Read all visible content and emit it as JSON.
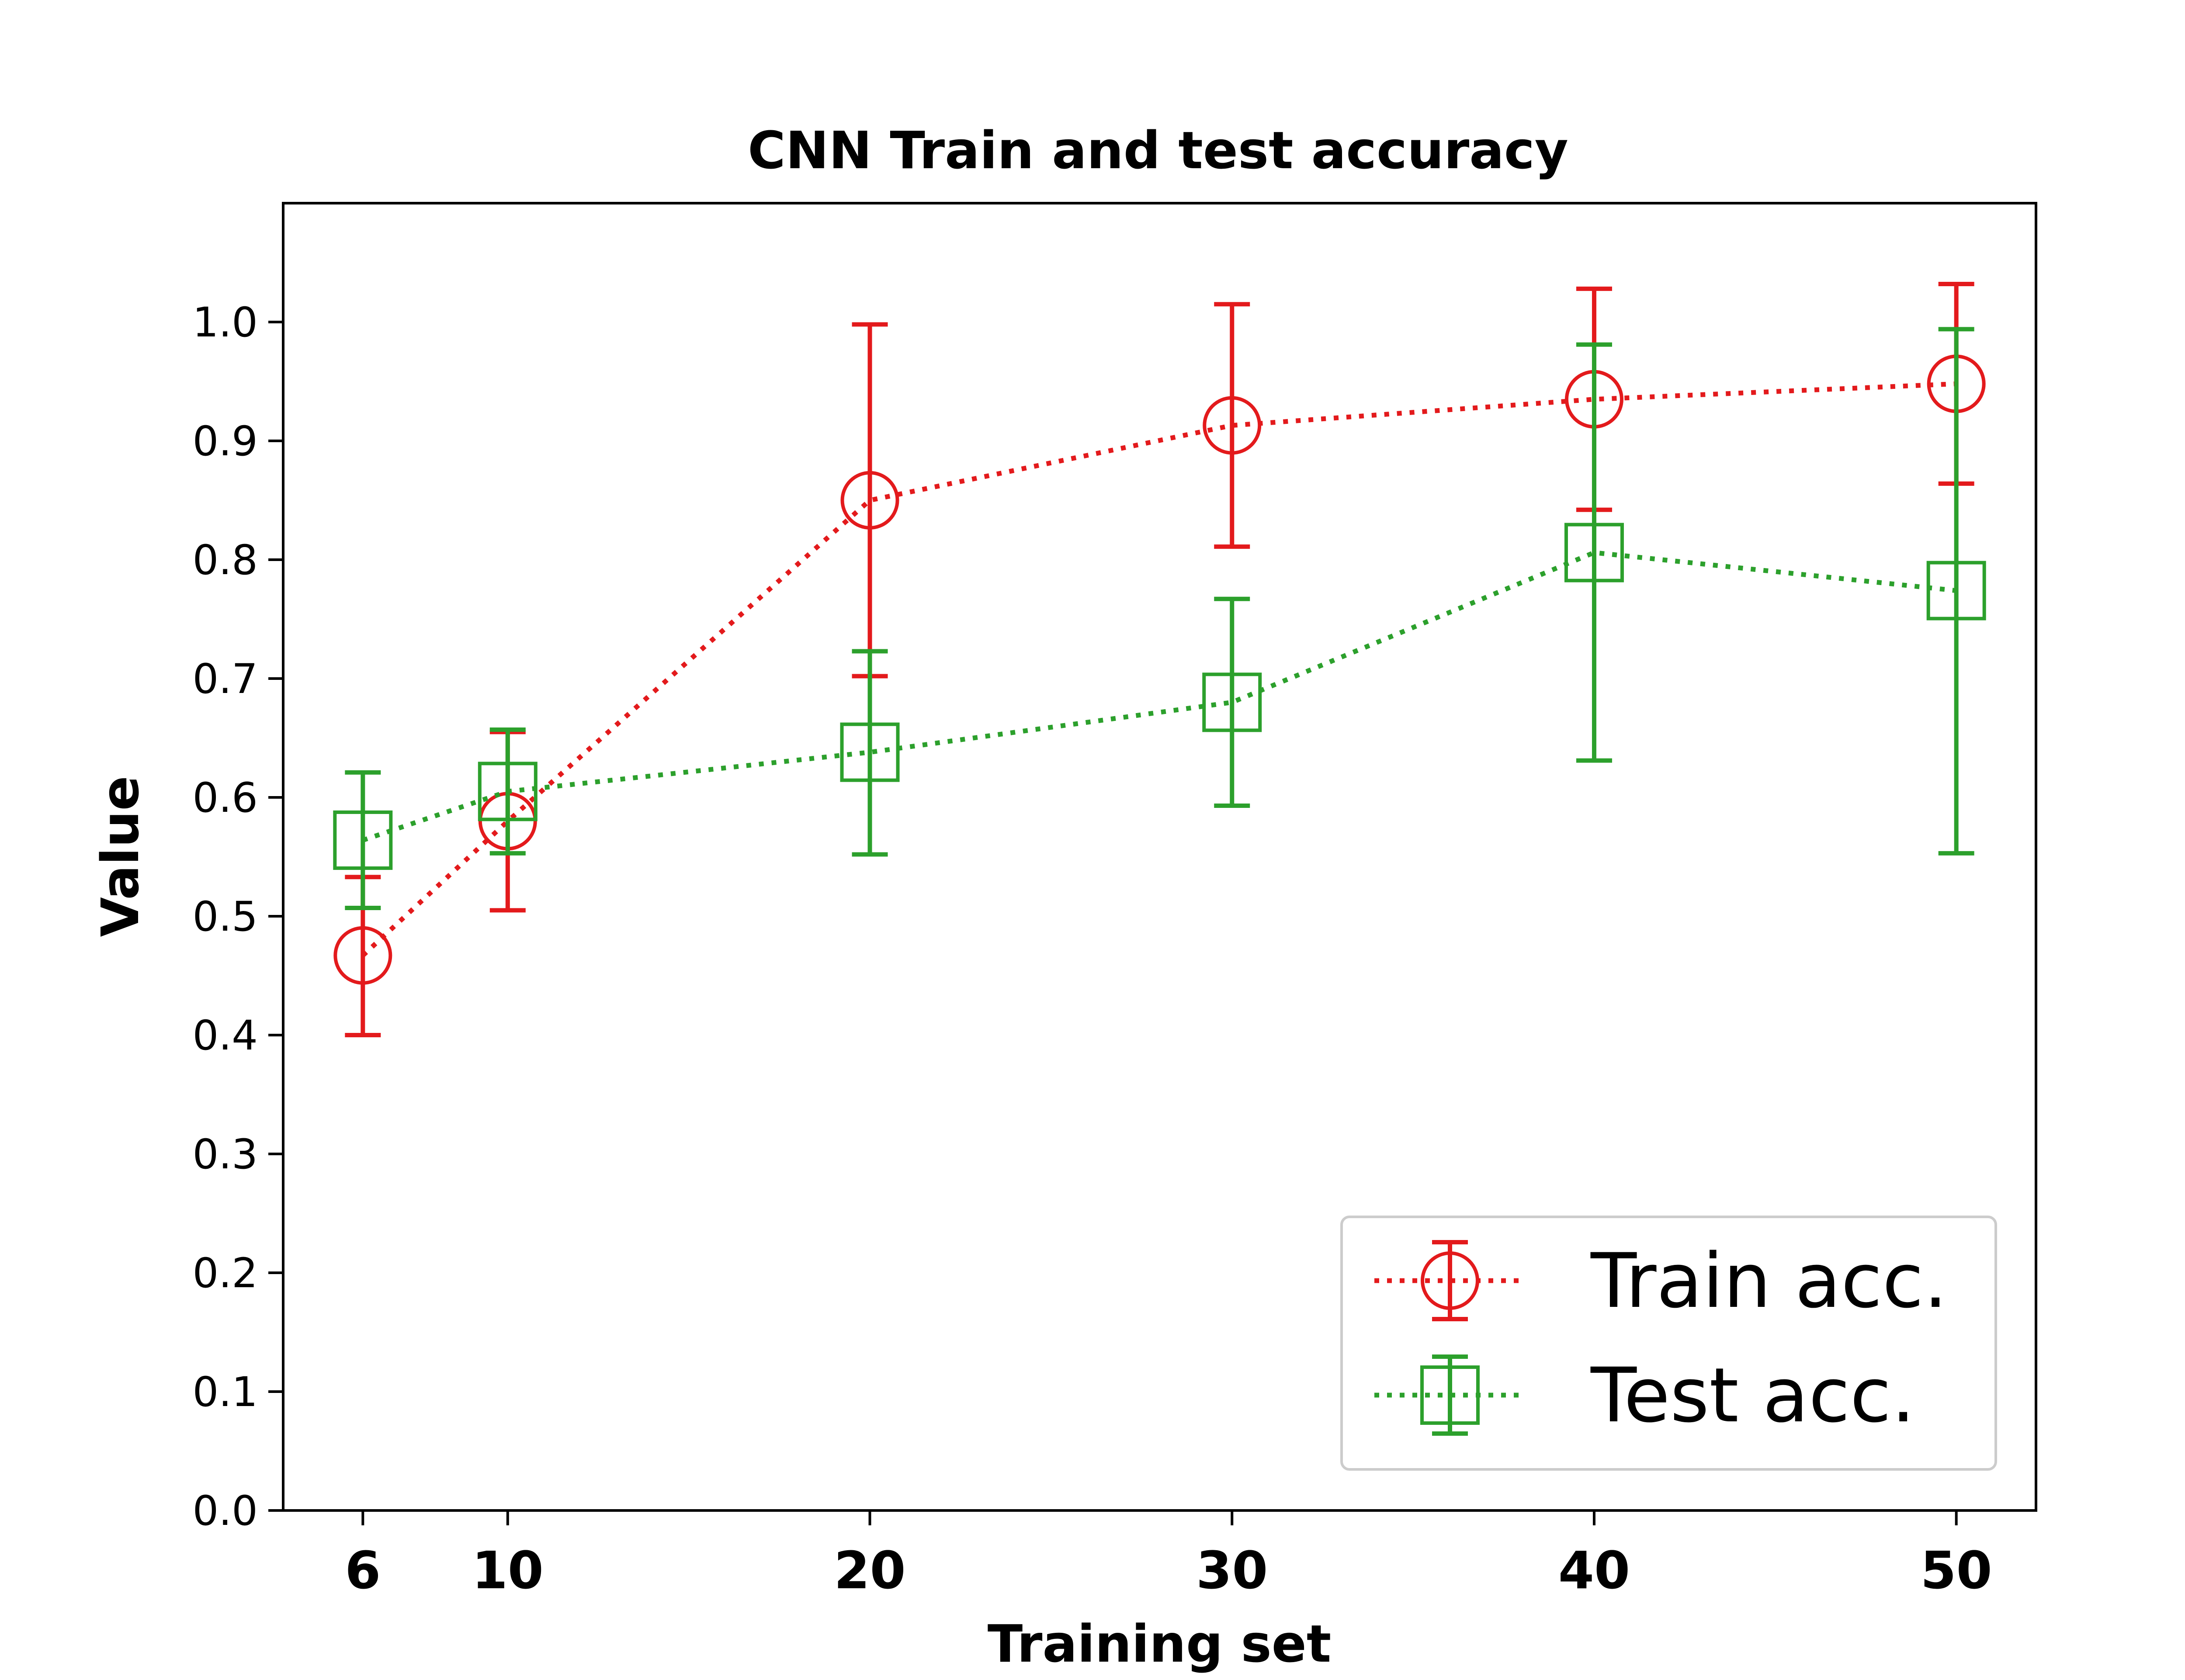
{
  "chart_data": {
    "type": "line",
    "title": "CNN Train and test accuracy",
    "xlabel": "Training set",
    "ylabel": "Value",
    "x": [
      6,
      10,
      20,
      30,
      40,
      50
    ],
    "xticks": [
      "6",
      "10",
      "20",
      "30",
      "40",
      "50"
    ],
    "yticks": [
      "0.0",
      "0.1",
      "0.2",
      "0.3",
      "0.4",
      "0.5",
      "0.6",
      "0.7",
      "0.8",
      "0.9",
      "1.0"
    ],
    "xlim": [
      3.8,
      52.2
    ],
    "ylim": [
      0.0,
      1.1
    ],
    "grid": false,
    "legend_position": "lower-right",
    "series": [
      {
        "name": "Train acc.",
        "color": "#e31a1c",
        "marker": "circle",
        "linestyle": "dotted",
        "values": [
          0.467,
          0.58,
          0.85,
          0.913,
          0.935,
          0.948
        ],
        "err_low": [
          0.4,
          0.505,
          0.702,
          0.811,
          0.842,
          0.864
        ],
        "err_high": [
          0.533,
          0.655,
          0.998,
          1.015,
          1.028,
          1.032
        ]
      },
      {
        "name": "Test acc.",
        "color": "#2ca02c",
        "marker": "square",
        "linestyle": "dotted",
        "values": [
          0.564,
          0.605,
          0.638,
          0.68,
          0.806,
          0.774
        ],
        "err_low": [
          0.507,
          0.553,
          0.552,
          0.593,
          0.631,
          0.553
        ],
        "err_high": [
          0.621,
          0.657,
          0.723,
          0.767,
          0.981,
          0.994
        ]
      }
    ]
  }
}
